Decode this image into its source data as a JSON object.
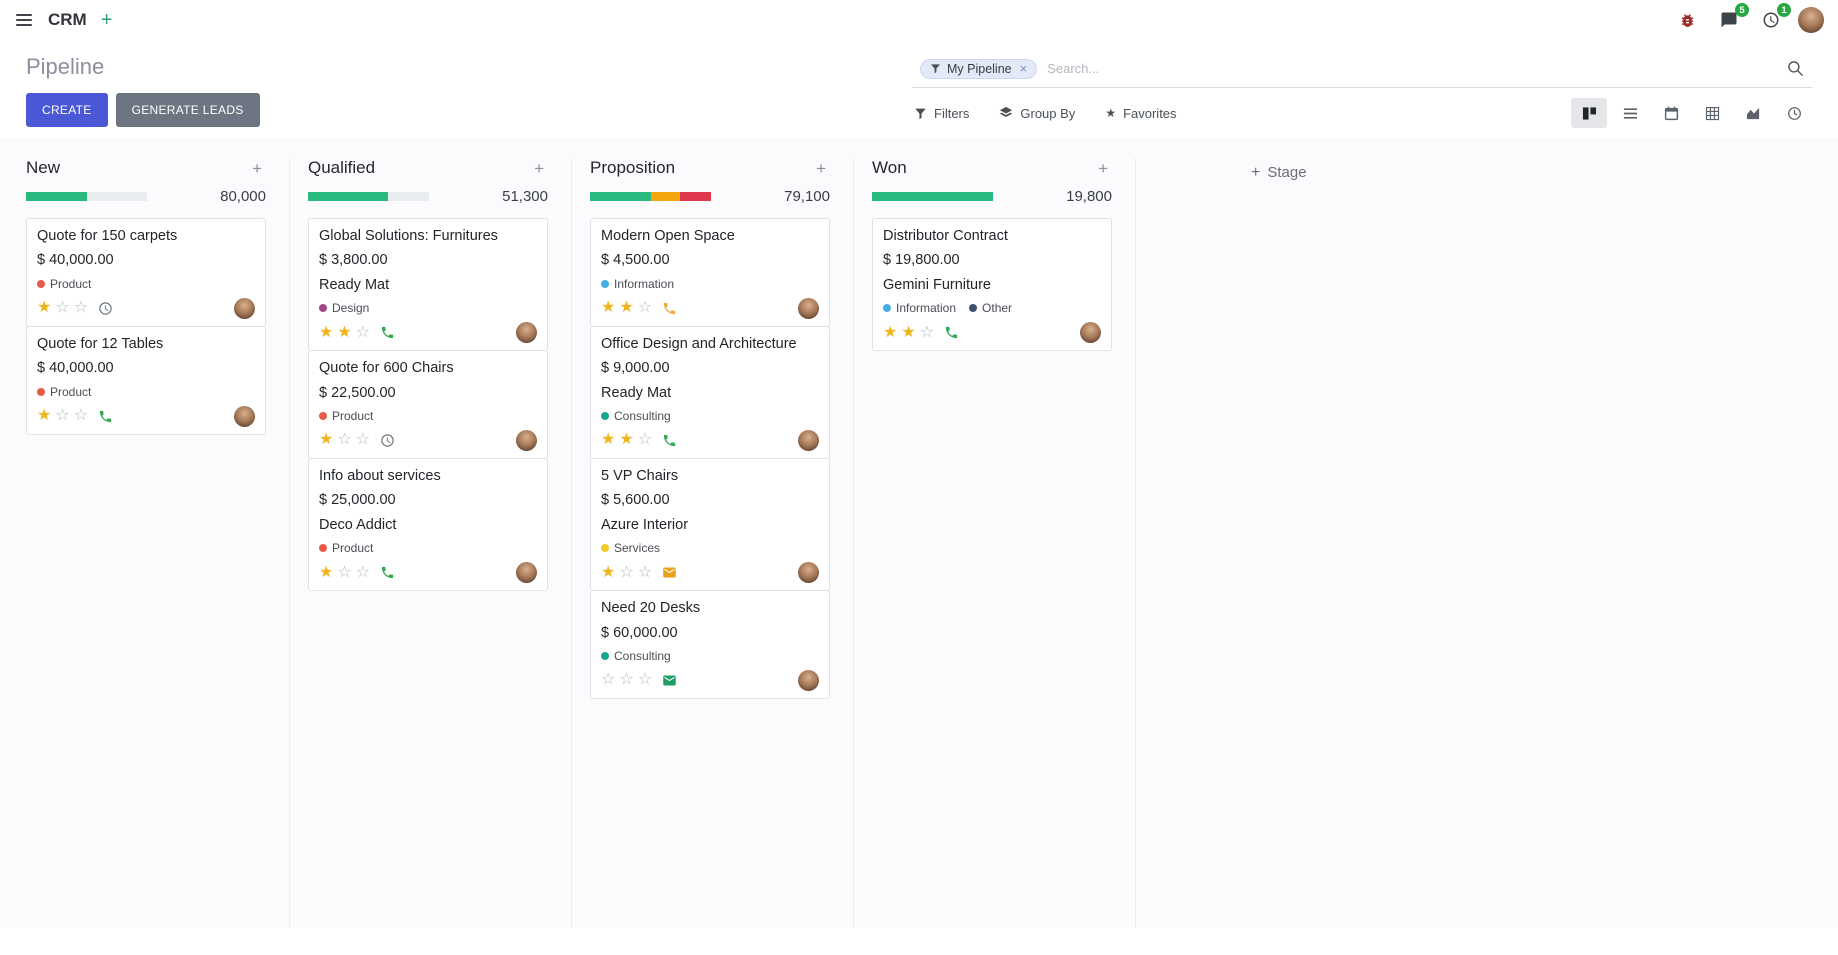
{
  "palette": {
    "primary": "#4a58d8",
    "secondary": "#6e7582",
    "success": "#2ab97f",
    "warning": "#f2a60e",
    "danger": "#e0394e",
    "progress_track": "#e9ecef",
    "star_gold": "#efb51c",
    "badge_green": "#28a745",
    "bug_red": "#9b2c23"
  },
  "navbar": {
    "app_name": "CRM",
    "message_badge": "5",
    "activity_badge": "1"
  },
  "control_panel": {
    "breadcrumb": "Pipeline",
    "create_label": "CREATE",
    "generate_leads_label": "GENERATE LEADS",
    "filters_label": "Filters",
    "group_by_label": "Group By",
    "favorites_label": "Favorites",
    "search_facet": "My Pipeline",
    "search_placeholder": "Search..."
  },
  "kanban": {
    "add_stage_label": "Stage",
    "columns": [
      {
        "name": "New",
        "total": "80,000",
        "progress": [
          {
            "status": "success",
            "pct": 50
          }
        ],
        "cards": [
          {
            "title": "Quote for 150 carpets",
            "amount": "$ 40,000.00",
            "company": "",
            "tags": [
              {
                "label": "Product",
                "color": "#e8594a"
              }
            ],
            "stars": 1,
            "activity": {
              "icon": "clock-icon",
              "color": "#6c757d"
            }
          },
          {
            "title": "Quote for 12 Tables",
            "amount": "$ 40,000.00",
            "company": "",
            "tags": [
              {
                "label": "Product",
                "color": "#e8594a"
              }
            ],
            "stars": 1,
            "activity": {
              "icon": "phone-icon",
              "color": "#36a854"
            }
          }
        ]
      },
      {
        "name": "Qualified",
        "total": "51,300",
        "progress": [
          {
            "status": "success",
            "pct": 66
          }
        ],
        "cards": [
          {
            "title": "Global Solutions: Furnitures",
            "amount": "$ 3,800.00",
            "company": "Ready Mat",
            "tags": [
              {
                "label": "Design",
                "color": "#a24689"
              }
            ],
            "stars": 2,
            "activity": {
              "icon": "phone-icon",
              "color": "#36a854"
            }
          },
          {
            "title": "Quote for 600 Chairs",
            "amount": "$ 22,500.00",
            "company": "",
            "tags": [
              {
                "label": "Product",
                "color": "#e8594a"
              }
            ],
            "stars": 1,
            "activity": {
              "icon": "clock-icon",
              "color": "#6c757d"
            }
          },
          {
            "title": "Info about services",
            "amount": "$ 25,000.00",
            "company": "Deco Addict",
            "tags": [
              {
                "label": "Product",
                "color": "#e8594a"
              }
            ],
            "stars": 1,
            "activity": {
              "icon": "phone-icon",
              "color": "#36a854"
            }
          }
        ]
      },
      {
        "name": "Proposition",
        "total": "79,100",
        "progress": [
          {
            "status": "success",
            "pct": 50
          },
          {
            "status": "warning",
            "pct": 24
          },
          {
            "status": "danger",
            "pct": 26
          }
        ],
        "cards": [
          {
            "title": "Modern Open Space",
            "amount": "$ 4,500.00",
            "company": "",
            "tags": [
              {
                "label": "Information",
                "color": "#45aee5"
              }
            ],
            "stars": 2,
            "activity": {
              "icon": "phone-icon",
              "color": "#f0ad3e"
            }
          },
          {
            "title": "Office Design and Architecture",
            "amount": "$ 9,000.00",
            "company": "Ready Mat",
            "tags": [
              {
                "label": "Consulting",
                "color": "#1aa789"
              }
            ],
            "stars": 2,
            "activity": {
              "icon": "phone-icon",
              "color": "#36a854"
            }
          },
          {
            "title": "5 VP Chairs",
            "amount": "$ 5,600.00",
            "company": "Azure Interior",
            "tags": [
              {
                "label": "Services",
                "color": "#f3cc25"
              }
            ],
            "stars": 1,
            "activity": {
              "icon": "envelope-icon",
              "color": "#e6a117"
            }
          },
          {
            "title": "Need 20 Desks",
            "amount": "$ 60,000.00",
            "company": "",
            "tags": [
              {
                "label": "Consulting",
                "color": "#1aa789"
              }
            ],
            "stars": 0,
            "activity": {
              "icon": "envelope-icon",
              "color": "#1f9e66"
            }
          }
        ]
      },
      {
        "name": "Won",
        "total": "19,800",
        "progress": [
          {
            "status": "success",
            "pct": 100
          }
        ],
        "cards": [
          {
            "title": "Distributor Contract",
            "amount": "$ 19,800.00",
            "company": "Gemini Furniture",
            "tags": [
              {
                "label": "Information",
                "color": "#45aee5"
              },
              {
                "label": "Other",
                "color": "#3e4f6b"
              }
            ],
            "stars": 2,
            "activity": {
              "icon": "phone-icon",
              "color": "#36a854"
            }
          }
        ]
      }
    ]
  }
}
